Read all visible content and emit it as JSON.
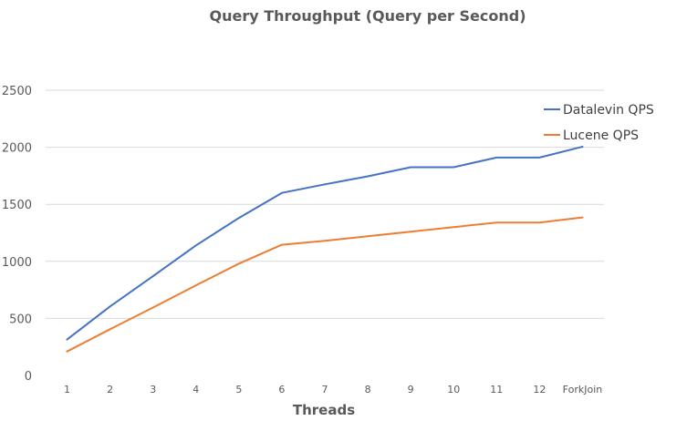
{
  "chart_data": {
    "type": "line",
    "title": "Query Throughput (Query per Second)",
    "xlabel": "Threads",
    "ylabel": "",
    "categories": [
      "1",
      "2",
      "3",
      "4",
      "5",
      "6",
      "7",
      "8",
      "9",
      "10",
      "11",
      "12",
      "ForkJoin"
    ],
    "ylim": [
      0,
      2500
    ],
    "yticks": [
      "0",
      "500",
      "1000",
      "1500",
      "2000",
      "2500"
    ],
    "grid": true,
    "legend_position": "right",
    "series": [
      {
        "name": "Datalevin QPS",
        "color": "#4472c4",
        "values": [
          315,
          605,
          870,
          1140,
          1380,
          1600,
          1675,
          1745,
          1825,
          1825,
          1910,
          1910,
          2005
        ]
      },
      {
        "name": "Lucene QPS",
        "color": "#ed7d31",
        "values": [
          210,
          405,
          595,
          790,
          980,
          1145,
          1180,
          1220,
          1260,
          1300,
          1340,
          1340,
          1385
        ]
      }
    ]
  }
}
